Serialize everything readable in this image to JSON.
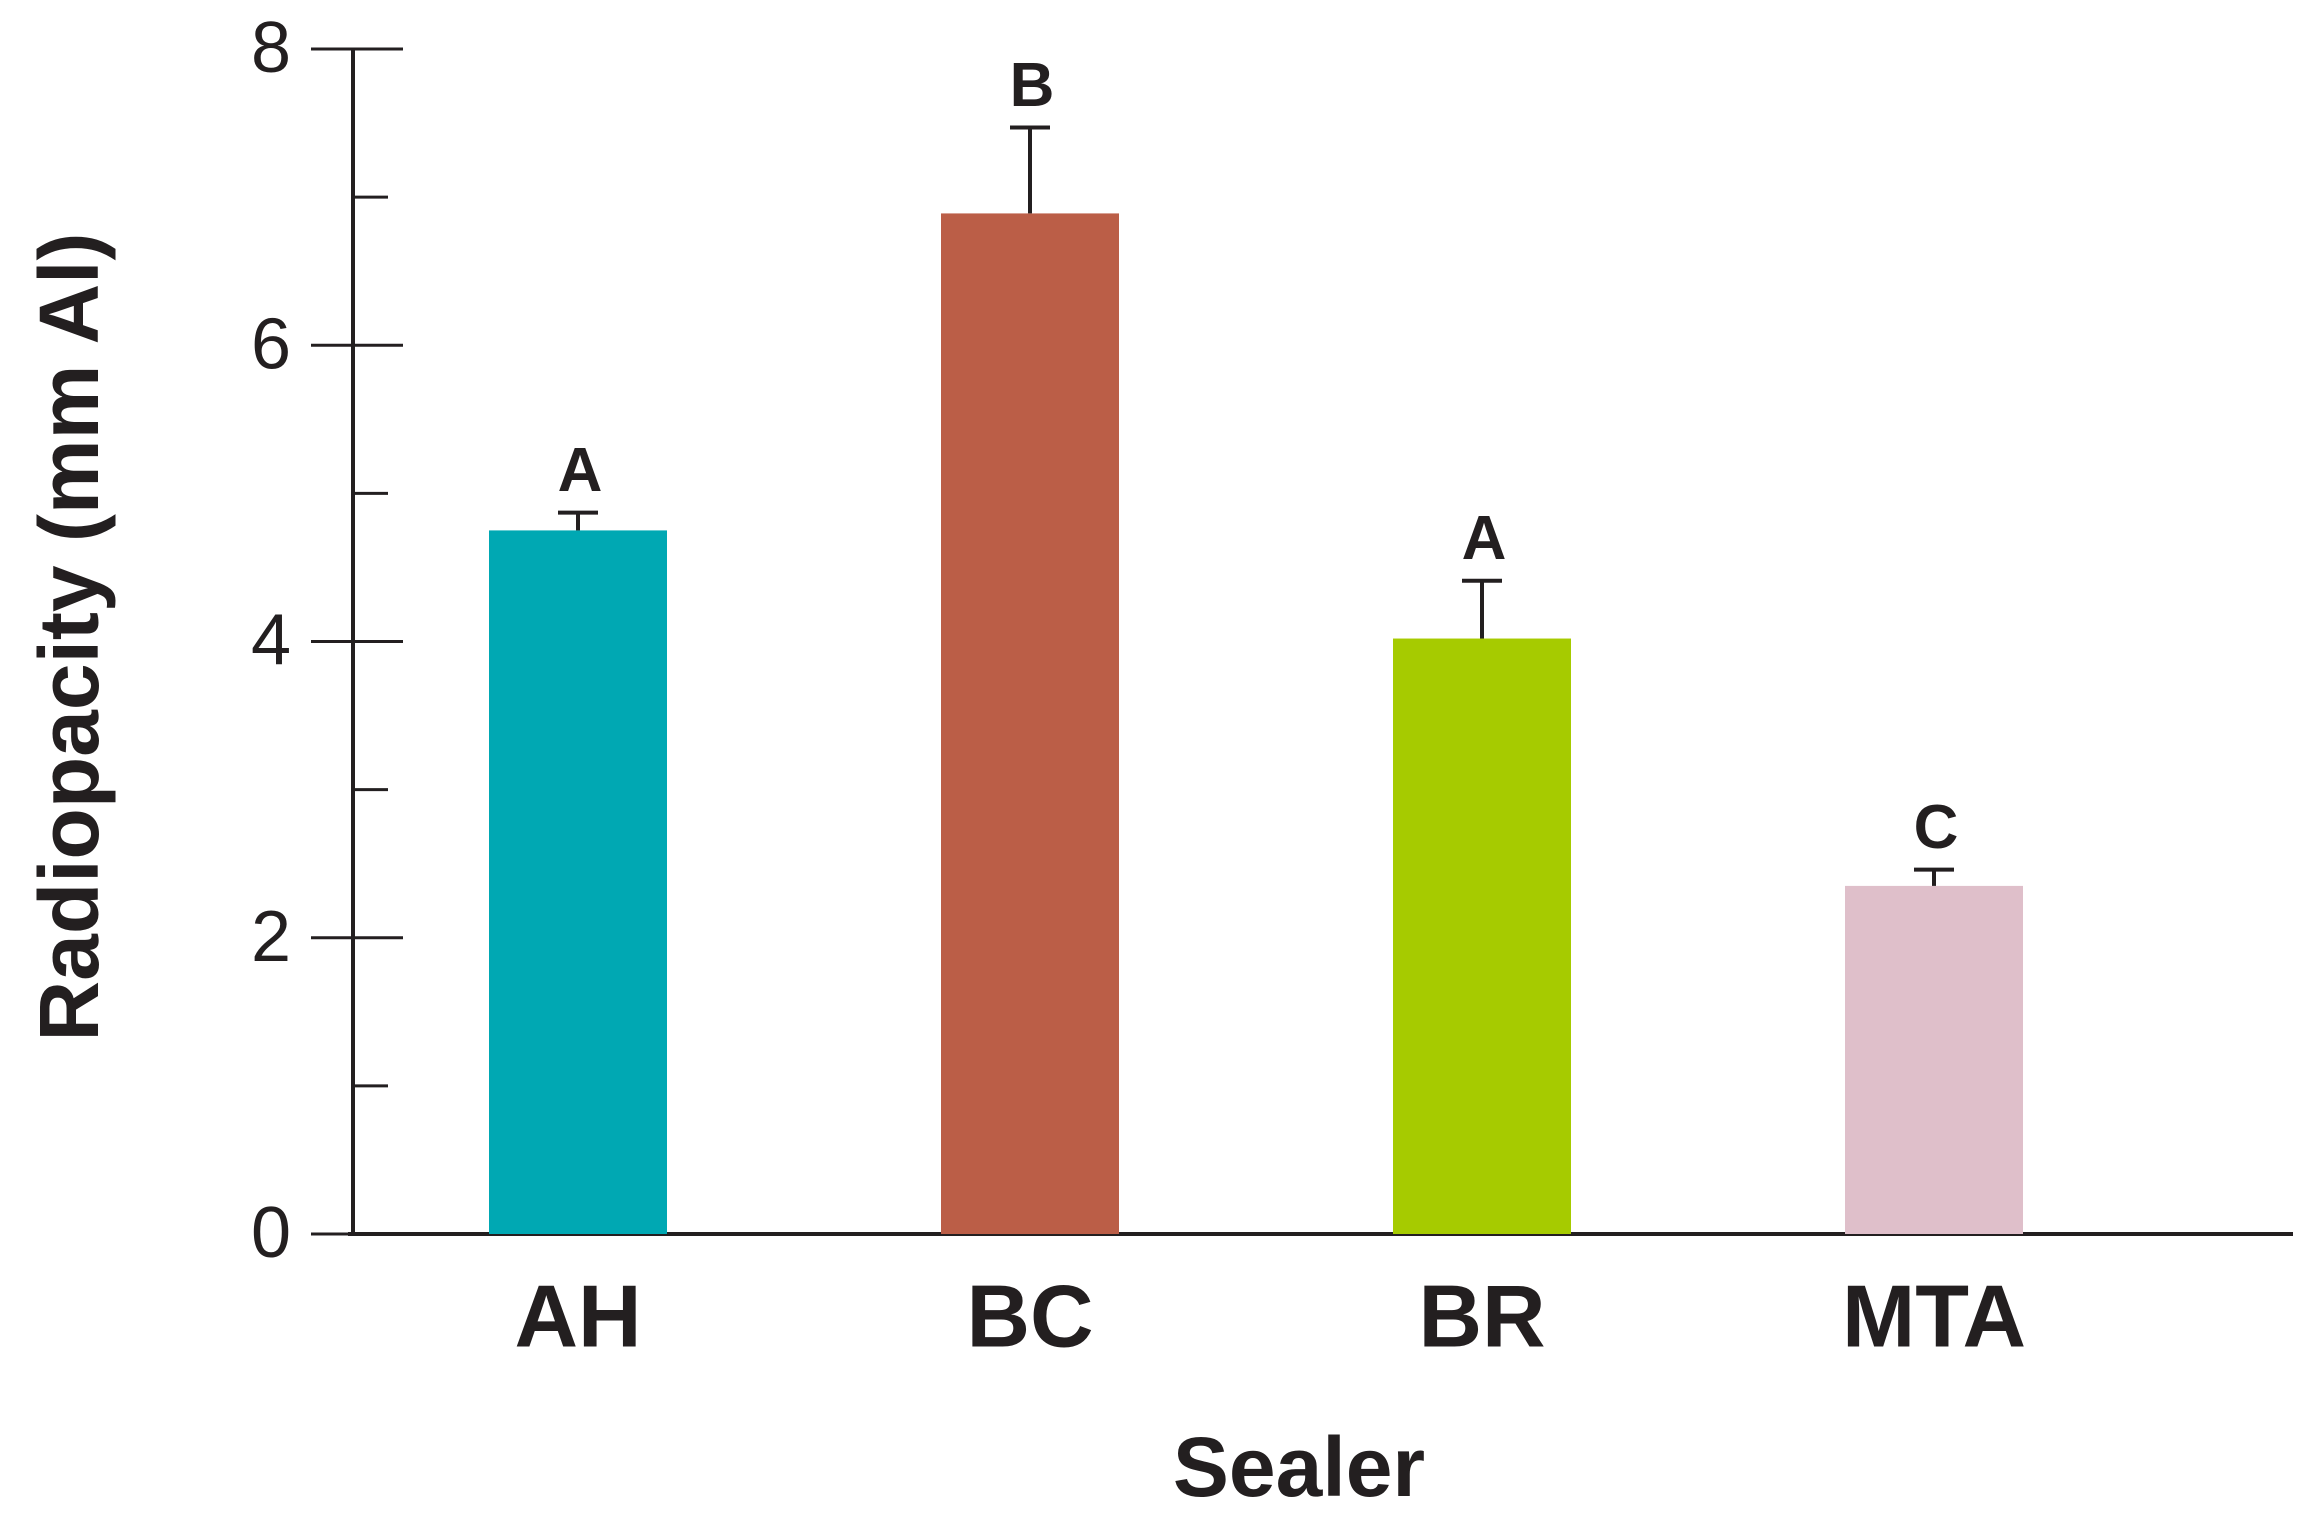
{
  "chart_data": {
    "type": "bar",
    "x_label": "Sealer",
    "y_label": "Radiopacity (mm Al)",
    "categories": [
      "AH",
      "BC",
      "BR",
      "MTA"
    ],
    "values": [
      4.75,
      6.89,
      4.02,
      2.35
    ],
    "errors": [
      0.12,
      0.58,
      0.39,
      0.11
    ],
    "significance_labels": [
      "A",
      "B",
      "A",
      "C"
    ],
    "colors": [
      "#00a8b3",
      "#bb5e47",
      "#a6cb00",
      "#dfbfca"
    ],
    "ylim": [
      0,
      8
    ],
    "yticks": [
      0,
      2,
      4,
      6,
      8
    ],
    "minor_yticks": [
      1,
      3,
      5,
      7
    ]
  }
}
